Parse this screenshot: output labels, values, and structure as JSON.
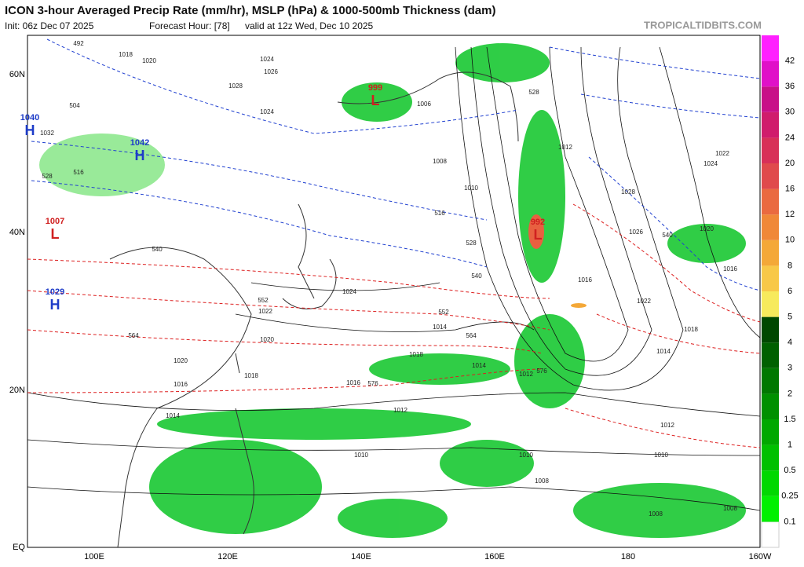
{
  "header": {
    "title": "ICON 3-hour Averaged Precip Rate (mm/hr), MSLP (hPa) & 1000-500mb Thickness (dam)",
    "init": "Init: 06z Dec 07 2025",
    "forecast_hour": "Forecast Hour: [78]",
    "valid": "valid at 12z Wed, Dec 10 2025",
    "site": "TROPICALTIDBITS.COM"
  },
  "map": {
    "lat_labels": [
      "60N",
      "40N",
      "20N",
      "EQ"
    ],
    "lon_labels": [
      "100E",
      "120E",
      "140E",
      "160E",
      "180",
      "160W"
    ],
    "centers": [
      {
        "letter": "H",
        "value": "1040",
        "color": "#1e3cc8"
      },
      {
        "letter": "H",
        "value": "1042",
        "color": "#1e3cc8"
      },
      {
        "letter": "L",
        "value": "999",
        "color": "#d02020"
      },
      {
        "letter": "L",
        "value": "992",
        "color": "#d02020"
      },
      {
        "letter": "L",
        "value": "1007",
        "color": "#d02020"
      },
      {
        "letter": "H",
        "value": "1029",
        "color": "#1e3cc8"
      }
    ],
    "isobar_labels": [
      "1018",
      "1020",
      "1024",
      "1026",
      "1028",
      "1032",
      "1024",
      "1006",
      "1008",
      "1012",
      "1016",
      "1022",
      "1024",
      "1022",
      "1020",
      "1018",
      "1016",
      "1014",
      "1012",
      "1010",
      "1008",
      "1010",
      "1014",
      "1018",
      "1020",
      "1026",
      "1028",
      "1024",
      "1022",
      "1020",
      "1016",
      "1014",
      "1018",
      "1012",
      "1010",
      "1008",
      "1008",
      "1012",
      "1010",
      "1014",
      "1016"
    ],
    "thickness_labels": [
      "492",
      "504",
      "516",
      "528",
      "540",
      "552",
      "564",
      "576",
      "516",
      "528",
      "540",
      "552",
      "564",
      "576",
      "528",
      "540"
    ]
  },
  "colorbar": {
    "labels": [
      0.1,
      0.25,
      0.5,
      1,
      1.5,
      2,
      3,
      4,
      5,
      6,
      8,
      10,
      12,
      16,
      20,
      24,
      30,
      36,
      42
    ],
    "colors": [
      "#ffffff",
      "#00f000",
      "#00d800",
      "#00c000",
      "#00a800",
      "#009000",
      "#007800",
      "#006000",
      "#004800",
      "#f7ea5c",
      "#f8c848",
      "#f4a838",
      "#f08838",
      "#ea6a40",
      "#e04a4c",
      "#d83058",
      "#d01c6c",
      "#c81088",
      "#e010c8",
      "#ff20ff"
    ]
  }
}
